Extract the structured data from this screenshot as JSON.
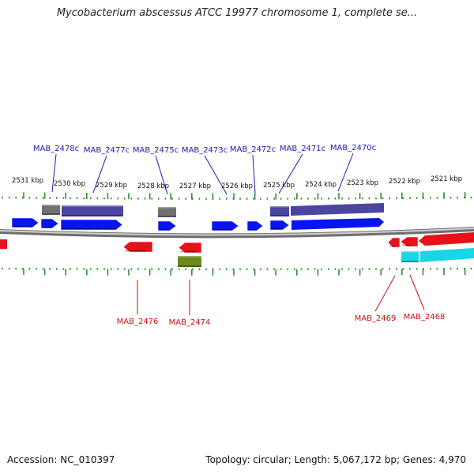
{
  "title": "Mycobacterium abscessus ATCC 19977 chromosome 1, complete se...",
  "footer": {
    "accession_label": "Accession:",
    "accession": "NC_010397",
    "topology_label": "Topology:",
    "topology": "circular",
    "length_label": "Length:",
    "length": "5,067,172 bp",
    "genes_label": "Genes:",
    "genes": "4,970"
  },
  "colors": {
    "backbone": "#8e8e8e",
    "ruler": "#2f8f2f",
    "gene_forward": "#0a14f0",
    "gene_reverse": "#e8101a",
    "cds_forward": "#4a46a0",
    "label_forward": "#1a1ab0",
    "label_reverse": "#cc1111",
    "gray_feature": "#707070",
    "olive_feature": "#6a8a1a",
    "cyan_feature": "#19d6e6"
  },
  "ruler_labels": [
    "2531 kbp",
    "2530 kbp",
    "2529 kbp",
    "2528 kbp",
    "2527 kbp",
    "2526 kbp",
    "2525 kbp",
    "2524 kbp",
    "2523 kbp",
    "2522 kbp",
    "2521 kbp"
  ],
  "gene_labels_forward": [
    "MAB_2478c",
    "MAB_2477c",
    "MAB_2475c",
    "MAB_2473c",
    "MAB_2472c",
    "MAB_2471c",
    "MAB_2470c"
  ],
  "gene_labels_reverse": [
    "MAB_2476",
    "MAB_2474",
    "MAB_2469",
    "MAB_2468"
  ]
}
